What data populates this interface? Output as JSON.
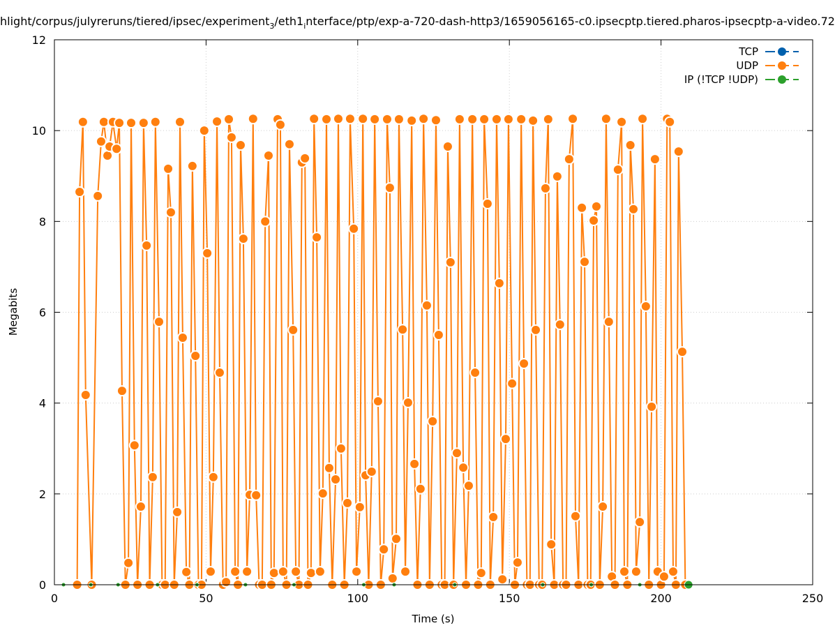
{
  "chart_data": {
    "type": "line",
    "title_parts": [
      "hlight/corpus/julyreruns/tiered/ipsec/experiment",
      "3",
      "/eth1",
      "i",
      "nterface/ptp/exp-a-720-dash-http3/1659056165-c0.ipsecptp.tiered.pharos-ipsecptp-a-video.72"
    ],
    "xlabel": "Time (s)",
    "ylabel": "Megabits",
    "xlim": [
      0,
      250
    ],
    "ylim": [
      0,
      12
    ],
    "xticks": [
      "0",
      "50",
      "100",
      "150",
      "200",
      "250"
    ],
    "yticks": [
      "0",
      "2",
      "4",
      "6",
      "8",
      "10",
      "12"
    ],
    "grid": true,
    "legend_position": "top-right",
    "series": [
      {
        "name": "TCP",
        "color": "#0060ad",
        "points": []
      },
      {
        "name": "UDP",
        "color": "#ff7f0e",
        "points": [
          [
            7.5,
            0
          ],
          [
            8.3,
            8.65
          ],
          [
            9.4,
            10.19
          ],
          [
            10.3,
            4.18
          ],
          [
            12.3,
            0
          ],
          [
            14.3,
            8.56
          ],
          [
            15.4,
            9.76
          ],
          [
            16.3,
            10.19
          ],
          [
            17.5,
            9.45
          ],
          [
            18.2,
            9.65
          ],
          [
            19.3,
            10.19
          ],
          [
            20.5,
            9.6
          ],
          [
            21.4,
            10.17
          ],
          [
            22.3,
            4.27
          ],
          [
            23.4,
            0
          ],
          [
            24.4,
            0.48
          ],
          [
            25.3,
            10.17
          ],
          [
            26.4,
            3.07
          ],
          [
            27.4,
            0
          ],
          [
            28.5,
            1.72
          ],
          [
            29.4,
            10.17
          ],
          [
            30.4,
            7.47
          ],
          [
            31.4,
            0
          ],
          [
            32.4,
            2.37
          ],
          [
            33.3,
            10.19
          ],
          [
            34.5,
            5.79
          ],
          [
            35.5,
            0
          ],
          [
            36.5,
            0
          ],
          [
            37.5,
            9.16
          ],
          [
            38.4,
            8.2
          ],
          [
            39.5,
            0
          ],
          [
            40.5,
            1.6
          ],
          [
            41.4,
            10.19
          ],
          [
            42.3,
            5.44
          ],
          [
            43.5,
            0.28
          ],
          [
            44.5,
            0
          ],
          [
            45.5,
            9.22
          ],
          [
            46.5,
            5.04
          ],
          [
            47.5,
            0
          ],
          [
            48.5,
            0
          ],
          [
            49.4,
            10.0
          ],
          [
            50.4,
            7.3
          ],
          [
            51.5,
            0.29
          ],
          [
            52.4,
            2.37
          ],
          [
            53.6,
            10.2
          ],
          [
            54.5,
            4.67
          ],
          [
            55.6,
            0
          ],
          [
            56.6,
            0.06
          ],
          [
            57.5,
            10.25
          ],
          [
            58.4,
            9.85
          ],
          [
            59.6,
            0.29
          ],
          [
            60.5,
            0
          ],
          [
            61.4,
            9.68
          ],
          [
            62.3,
            7.62
          ],
          [
            63.5,
            0.29
          ],
          [
            64.4,
            1.98
          ],
          [
            65.5,
            10.26
          ],
          [
            66.5,
            1.97
          ],
          [
            67.5,
            0
          ],
          [
            68.5,
            0
          ],
          [
            69.5,
            8.0
          ],
          [
            70.6,
            9.45
          ],
          [
            71.5,
            0
          ],
          [
            72.4,
            0.26
          ],
          [
            73.6,
            10.25
          ],
          [
            74.5,
            10.13
          ],
          [
            75.4,
            0.29
          ],
          [
            76.5,
            0
          ],
          [
            77.5,
            9.7
          ],
          [
            78.7,
            5.61
          ],
          [
            79.6,
            0.29
          ],
          [
            80.6,
            0
          ],
          [
            81.6,
            9.3
          ],
          [
            82.6,
            9.39
          ],
          [
            83.6,
            0
          ],
          [
            84.6,
            0.26
          ],
          [
            85.6,
            10.26
          ],
          [
            86.5,
            7.65
          ],
          [
            87.6,
            0.29
          ],
          [
            88.5,
            2.01
          ],
          [
            89.7,
            10.25
          ],
          [
            90.6,
            2.57
          ],
          [
            91.6,
            0
          ],
          [
            92.7,
            2.32
          ],
          [
            93.6,
            10.26
          ],
          [
            94.5,
            3.0
          ],
          [
            95.6,
            0
          ],
          [
            96.6,
            1.8
          ],
          [
            97.5,
            10.26
          ],
          [
            98.7,
            7.84
          ],
          [
            99.6,
            0.29
          ],
          [
            100.7,
            1.71
          ],
          [
            101.7,
            10.26
          ],
          [
            102.6,
            2.41
          ],
          [
            103.6,
            0
          ],
          [
            104.6,
            2.49
          ],
          [
            105.6,
            10.25
          ],
          [
            106.7,
            4.04
          ],
          [
            107.6,
            0
          ],
          [
            108.6,
            0.78
          ],
          [
            109.7,
            10.25
          ],
          [
            110.6,
            8.74
          ],
          [
            111.5,
            0.14
          ],
          [
            112.7,
            1.01
          ],
          [
            113.6,
            10.25
          ],
          [
            114.8,
            5.62
          ],
          [
            115.7,
            0.29
          ],
          [
            116.6,
            4.01
          ],
          [
            117.8,
            10.22
          ],
          [
            118.7,
            2.66
          ],
          [
            119.7,
            0
          ],
          [
            120.7,
            2.11
          ],
          [
            121.7,
            10.26
          ],
          [
            122.8,
            6.15
          ],
          [
            123.7,
            0
          ],
          [
            124.7,
            3.6
          ],
          [
            125.8,
            10.23
          ],
          [
            126.7,
            5.5
          ],
          [
            127.7,
            0
          ],
          [
            128.7,
            0
          ],
          [
            129.7,
            9.65
          ],
          [
            130.6,
            7.1
          ],
          [
            131.6,
            0
          ],
          [
            132.7,
            2.9
          ],
          [
            133.6,
            10.25
          ],
          [
            134.8,
            2.58
          ],
          [
            135.7,
            0
          ],
          [
            136.6,
            2.18
          ],
          [
            137.8,
            10.25
          ],
          [
            138.7,
            4.67
          ],
          [
            139.7,
            0
          ],
          [
            140.7,
            0.26
          ],
          [
            141.7,
            10.25
          ],
          [
            142.8,
            8.39
          ],
          [
            143.7,
            0
          ],
          [
            144.7,
            1.49
          ],
          [
            145.8,
            10.25
          ],
          [
            146.7,
            6.64
          ],
          [
            147.7,
            0.12
          ],
          [
            148.8,
            3.21
          ],
          [
            149.7,
            10.25
          ],
          [
            150.9,
            4.43
          ],
          [
            151.8,
            0
          ],
          [
            152.7,
            0.49
          ],
          [
            153.9,
            10.25
          ],
          [
            154.8,
            4.87
          ],
          [
            155.8,
            0
          ],
          [
            156.8,
            0
          ],
          [
            157.8,
            10.22
          ],
          [
            158.7,
            5.61
          ],
          [
            159.8,
            0
          ],
          [
            160.8,
            0
          ],
          [
            161.9,
            8.73
          ],
          [
            162.8,
            10.25
          ],
          [
            163.8,
            0.89
          ],
          [
            164.8,
            0
          ],
          [
            165.8,
            8.99
          ],
          [
            166.7,
            5.73
          ],
          [
            167.7,
            0
          ],
          [
            168.7,
            0
          ],
          [
            169.7,
            9.37
          ],
          [
            170.9,
            10.26
          ],
          [
            171.8,
            1.51
          ],
          [
            172.8,
            0
          ],
          [
            173.9,
            8.3
          ],
          [
            174.8,
            7.11
          ],
          [
            175.8,
            0
          ],
          [
            176.8,
            0
          ],
          [
            177.8,
            8.02
          ],
          [
            178.7,
            8.33
          ],
          [
            179.8,
            0
          ],
          [
            180.8,
            1.72
          ],
          [
            181.9,
            10.26
          ],
          [
            182.8,
            5.79
          ],
          [
            183.8,
            0.18
          ],
          [
            184.8,
            0
          ],
          [
            185.8,
            9.14
          ],
          [
            187.0,
            10.19
          ],
          [
            187.9,
            0.29
          ],
          [
            188.9,
            0
          ],
          [
            189.9,
            9.68
          ],
          [
            190.9,
            8.27
          ],
          [
            191.8,
            0.29
          ],
          [
            193.0,
            1.38
          ],
          [
            193.9,
            10.26
          ],
          [
            195.0,
            6.13
          ],
          [
            196.0,
            0
          ],
          [
            196.9,
            3.92
          ],
          [
            198.0,
            9.37
          ],
          [
            198.9,
            0.29
          ],
          [
            200.0,
            0
          ],
          [
            201.0,
            0.18
          ],
          [
            202.0,
            10.26
          ],
          [
            202.9,
            10.19
          ],
          [
            204.0,
            0.29
          ],
          [
            204.9,
            0
          ],
          [
            205.8,
            9.54
          ],
          [
            207.0,
            5.13
          ],
          [
            208.0,
            0
          ]
        ]
      },
      {
        "name": "IP (!TCP  !UDP)",
        "color": "#2ca02c",
        "points": [
          [
            3,
            0
          ],
          [
            12,
            0
          ],
          [
            21,
            0
          ],
          [
            34,
            0
          ],
          [
            47,
            0
          ],
          [
            63,
            0
          ],
          [
            79,
            0
          ],
          [
            102,
            0
          ],
          [
            112,
            0
          ],
          [
            132,
            0
          ],
          [
            161,
            0
          ],
          [
            177,
            0
          ],
          [
            193,
            0
          ],
          [
            209.1,
            0
          ]
        ]
      }
    ]
  }
}
